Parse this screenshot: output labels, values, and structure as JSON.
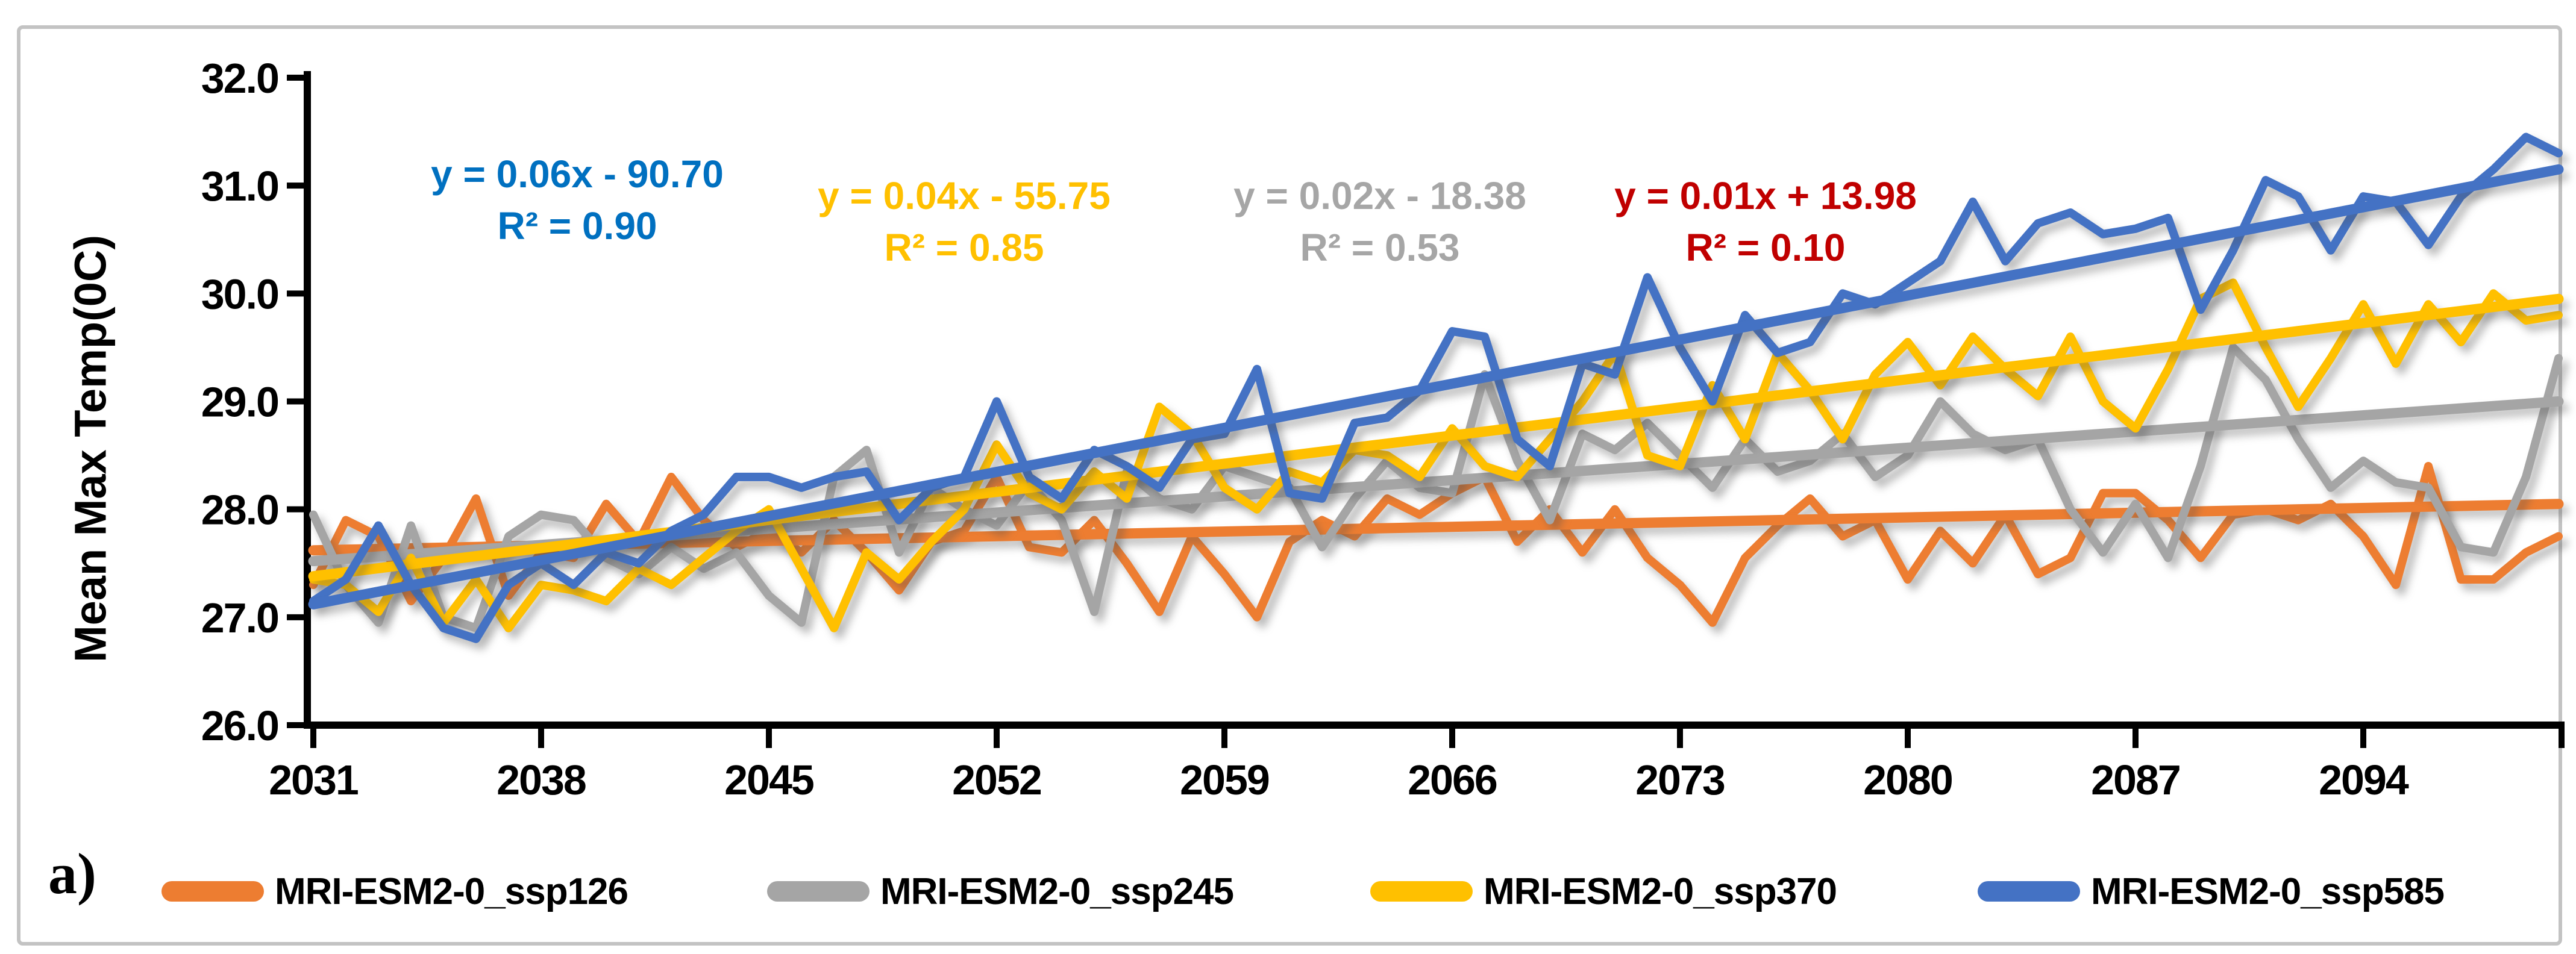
{
  "panel_label": "a)",
  "chart_data": {
    "type": "line",
    "title": "",
    "ylabel": "Mean Max Temp(0C)",
    "xlabel": "",
    "grid": false,
    "legend_position": "bottom",
    "ylim": [
      26.0,
      32.0
    ],
    "y_ticks": [
      {
        "label": "32.0",
        "value": 32.0
      },
      {
        "label": "31.0",
        "value": 31.0
      },
      {
        "label": "30.0",
        "value": 30.0
      },
      {
        "label": "29.0",
        "value": 29.0
      },
      {
        "label": "28.0",
        "value": 28.0
      },
      {
        "label": "27.0",
        "value": 27.0
      },
      {
        "label": "26.0",
        "value": 26.0
      }
    ],
    "x_start": 2031,
    "x_end": 2100,
    "x_ticks": [
      2031,
      2038,
      2045,
      2052,
      2059,
      2066,
      2073,
      2080,
      2087,
      2094
    ],
    "series": [
      {
        "name": "MRI-ESM2-0_ssp126",
        "color": "#ED7D31",
        "values": [
          27.3,
          27.9,
          27.75,
          27.15,
          27.55,
          28.1,
          27.2,
          27.6,
          27.55,
          28.05,
          27.7,
          28.3,
          27.9,
          27.65,
          27.8,
          27.6,
          27.9,
          27.6,
          27.25,
          27.7,
          27.8,
          28.3,
          27.65,
          27.6,
          27.9,
          27.5,
          27.05,
          27.75,
          27.4,
          27.0,
          27.7,
          27.9,
          27.75,
          28.1,
          27.95,
          28.15,
          28.3,
          27.7,
          28.0,
          27.6,
          28.0,
          27.55,
          27.3,
          26.95,
          27.55,
          27.85,
          28.1,
          27.75,
          27.9,
          27.35,
          27.8,
          27.5,
          27.95,
          27.4,
          27.55,
          28.15,
          28.15,
          27.9,
          27.55,
          27.95,
          28.0,
          27.9,
          28.05,
          27.75,
          27.3,
          28.4,
          27.35,
          27.35,
          27.6,
          27.75
        ],
        "trend": {
          "start": 27.62,
          "end": 28.05
        }
      },
      {
        "name": "MRI-ESM2-0_ssp245",
        "color": "#A5A5A5",
        "values": [
          27.95,
          27.3,
          26.95,
          27.85,
          27.0,
          26.9,
          27.75,
          27.95,
          27.9,
          27.55,
          27.4,
          27.65,
          27.45,
          27.6,
          27.2,
          26.95,
          28.3,
          28.55,
          27.6,
          28.2,
          28.0,
          27.85,
          28.25,
          27.9,
          27.05,
          28.35,
          28.1,
          28.0,
          28.4,
          28.3,
          28.2,
          27.65,
          28.1,
          28.45,
          28.2,
          28.15,
          29.25,
          28.45,
          27.9,
          28.7,
          28.55,
          28.8,
          28.5,
          28.2,
          28.65,
          28.35,
          28.45,
          28.7,
          28.3,
          28.5,
          29.0,
          28.7,
          28.55,
          28.65,
          28.0,
          27.6,
          28.05,
          27.55,
          28.4,
          29.5,
          29.2,
          28.65,
          28.2,
          28.45,
          28.25,
          28.2,
          27.65,
          27.6,
          28.3,
          29.4
        ],
        "trend": {
          "start": 27.52,
          "end": 29.0
        }
      },
      {
        "name": "MRI-ESM2-0_ssp370",
        "color": "#FFC000",
        "values": [
          27.35,
          27.3,
          27.05,
          27.55,
          26.95,
          27.35,
          26.9,
          27.3,
          27.25,
          27.15,
          27.45,
          27.3,
          27.55,
          27.8,
          28.0,
          27.45,
          26.9,
          27.6,
          27.35,
          27.7,
          28.0,
          28.6,
          28.15,
          28.0,
          28.35,
          28.1,
          28.95,
          28.7,
          28.2,
          28.0,
          28.35,
          28.25,
          28.55,
          28.5,
          28.3,
          28.75,
          28.4,
          28.3,
          28.65,
          29.0,
          29.45,
          28.5,
          28.4,
          29.15,
          28.65,
          29.45,
          29.1,
          28.65,
          29.25,
          29.55,
          29.15,
          29.6,
          29.3,
          29.05,
          29.6,
          29.0,
          28.75,
          29.3,
          29.95,
          30.1,
          29.5,
          28.95,
          29.4,
          29.9,
          29.35,
          29.9,
          29.55,
          30.0,
          29.75,
          29.8
        ],
        "trend": {
          "start": 27.38,
          "end": 29.95
        }
      },
      {
        "name": "MRI-ESM2-0_ssp585",
        "color": "#4472C4",
        "values": [
          27.15,
          27.35,
          27.85,
          27.3,
          26.9,
          26.8,
          27.3,
          27.5,
          27.3,
          27.6,
          27.5,
          27.8,
          27.95,
          28.3,
          28.3,
          28.2,
          28.3,
          28.35,
          27.9,
          28.2,
          28.3,
          29.0,
          28.3,
          28.1,
          28.55,
          28.4,
          28.2,
          28.65,
          28.7,
          29.3,
          28.15,
          28.1,
          28.8,
          28.85,
          29.1,
          29.65,
          29.6,
          28.65,
          28.4,
          29.35,
          29.25,
          30.15,
          29.5,
          29.0,
          29.8,
          29.45,
          29.55,
          30.0,
          29.9,
          30.1,
          30.3,
          30.85,
          30.3,
          30.65,
          30.75,
          30.55,
          30.6,
          30.7,
          29.85,
          30.4,
          31.05,
          30.9,
          30.4,
          30.9,
          30.85,
          30.45,
          30.9,
          31.15,
          31.45,
          31.3
        ],
        "trend": {
          "start": 27.12,
          "end": 31.15
        }
      }
    ]
  },
  "equations": [
    {
      "line1": "y = 0.06x - 90.70",
      "line2": "R² = 0.90",
      "color": "#0070C0"
    },
    {
      "line1": "y = 0.04x - 55.75",
      "line2": "R² = 0.85",
      "color": "#FFC000"
    },
    {
      "line1": "y = 0.02x - 18.38",
      "line2": "R² = 0.53",
      "color": "#A6A6A6"
    },
    {
      "line1": "y = 0.01x + 13.98",
      "line2": "R² = 0.10",
      "color": "#C00000"
    }
  ]
}
